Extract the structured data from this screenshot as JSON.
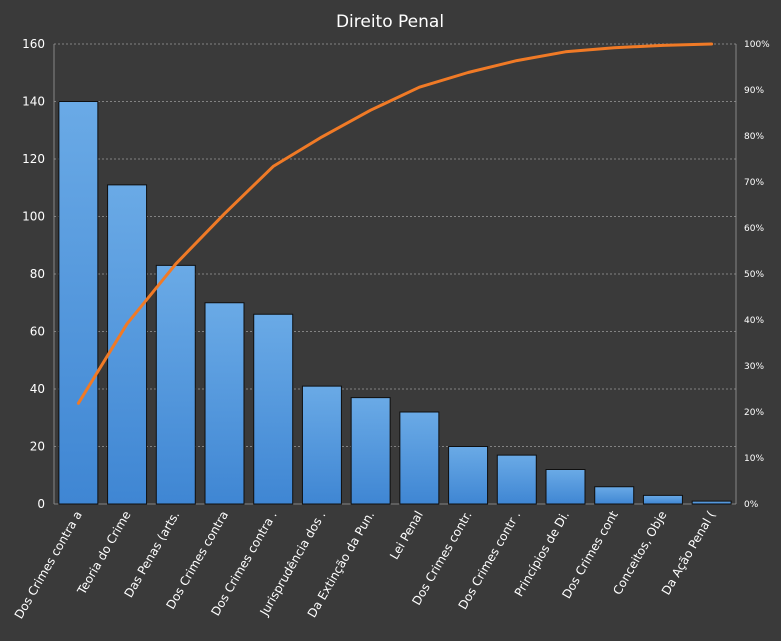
{
  "colors": {
    "background": "#3a3a3a",
    "plot_background": "#3a3a3a",
    "grid": "#9a9a9a",
    "bar_fill_top": "#6aaae6",
    "bar_fill_bottom": "#3f86d3",
    "bar_stroke": "#0f0f0f",
    "line": "#f07a26",
    "text": "#ffffff"
  },
  "chart_data": {
    "type": "bar",
    "title": "Direito Penal",
    "xlabel": "",
    "ylabel": "",
    "ylim": [
      0,
      160
    ],
    "yticks": [
      "0",
      "20",
      "40",
      "60",
      "80",
      "100",
      "120",
      "140",
      "160"
    ],
    "y2lim": [
      0,
      100
    ],
    "y2ticks": [
      "0%",
      "10%",
      "20%",
      "30%",
      "40%",
      "50%",
      "60%",
      "70%",
      "80%",
      "90%",
      "100%"
    ],
    "grid": true,
    "categories": [
      "Dos Crimes contra a",
      "Teoria do Crime",
      "Das Penas (arts.",
      "Dos Crimes contra",
      "Dos Crimes contra .",
      "Jurisprudência dos .",
      "Da Extinção da Pun.",
      "Lei Penal",
      "Dos Crimes contr.",
      "Dos Crimes contr .",
      "Princípios de Di.",
      "Dos Crimes cont",
      "Conceitos, Obje",
      "Da Ação Penal ("
    ],
    "series": [
      {
        "type": "bar",
        "axis": "left",
        "values": [
          140,
          111,
          83,
          70,
          66,
          41,
          37,
          32,
          20,
          17,
          12,
          6,
          3,
          1
        ]
      },
      {
        "type": "line",
        "axis": "right",
        "values": [
          21.9,
          39.2,
          52.2,
          63.1,
          73.4,
          79.8,
          85.6,
          90.6,
          93.8,
          96.4,
          98.3,
          99.2,
          99.7,
          100
        ]
      }
    ]
  }
}
